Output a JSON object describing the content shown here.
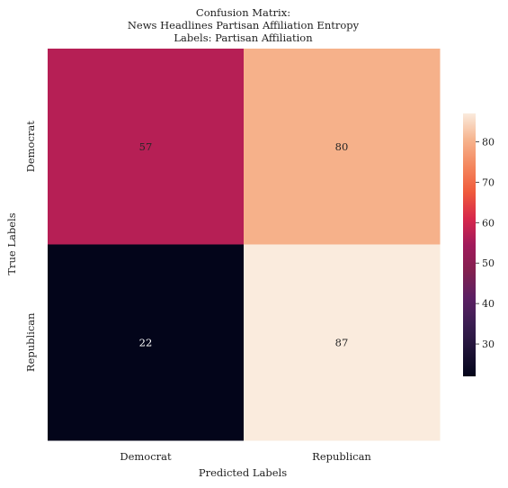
{
  "chart_data": {
    "type": "heatmap",
    "title_lines": [
      "Confusion Matrix:",
      "News Headlines Partisan Affiliation Entropy",
      "Labels: Partisan Affiliation"
    ],
    "xlabel": "Predicted Labels",
    "ylabel": "True Labels",
    "x_categories": [
      "Democrat",
      "Republican"
    ],
    "y_categories": [
      "Democrat",
      "Republican"
    ],
    "values": [
      [
        57,
        80
      ],
      [
        22,
        87
      ]
    ],
    "colorbar": {
      "min": 22,
      "max": 87,
      "ticks": [
        30,
        40,
        50,
        60,
        70,
        80
      ],
      "colormap": "rocket"
    },
    "colormap_stops": [
      {
        "v": 0.0,
        "color": "#03051a"
      },
      {
        "v": 0.1,
        "color": "#1f1337"
      },
      {
        "v": 0.2,
        "color": "#3b1e52"
      },
      {
        "v": 0.3,
        "color": "#5c1f63"
      },
      {
        "v": 0.4,
        "color": "#82204f"
      },
      {
        "v": 0.5,
        "color": "#a11a5b"
      },
      {
        "v": 0.6,
        "color": "#d7284b"
      },
      {
        "v": 0.7,
        "color": "#ef5a3c"
      },
      {
        "v": 0.8,
        "color": "#f4875e"
      },
      {
        "v": 0.9,
        "color": "#f6b48e"
      },
      {
        "v": 1.0,
        "color": "#faebdd"
      }
    ]
  }
}
